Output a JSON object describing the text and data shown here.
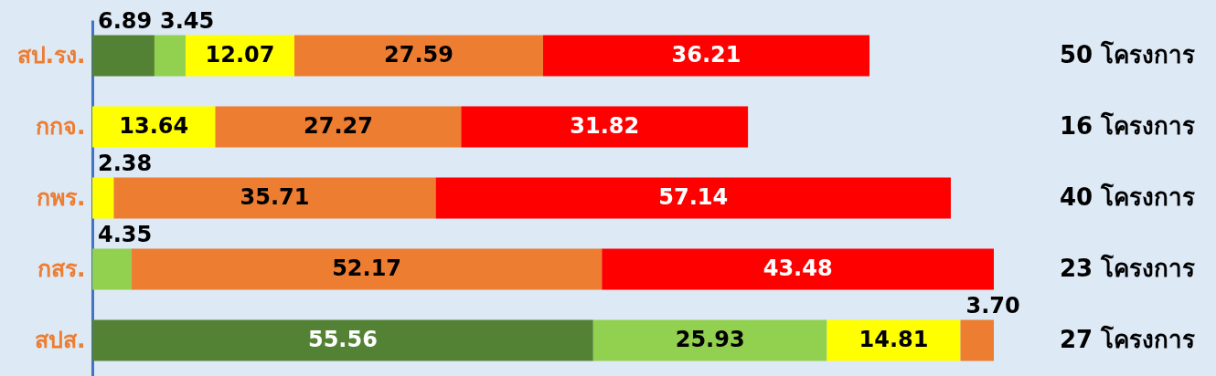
{
  "chart_data": {
    "type": "bar",
    "orientation": "horizontal",
    "stacked": true,
    "tick_labels": "y",
    "categories": [
      "สป.รง.",
      "กกจ.",
      "กพร.",
      "กสร.",
      "สปส."
    ],
    "xlim": [
      0,
      100
    ],
    "series": [
      {
        "color": "#548235",
        "values": [
          6.89,
          null,
          null,
          null,
          55.56
        ],
        "value_labels": [
          "6.89",
          null,
          null,
          null,
          "55.56"
        ]
      },
      {
        "color": "#92d050",
        "values": [
          3.45,
          null,
          null,
          4.35,
          25.93
        ],
        "value_labels": [
          "3.45",
          null,
          null,
          "4.35",
          "25.93"
        ]
      },
      {
        "color": "#ffff00",
        "values": [
          12.07,
          13.64,
          2.38,
          null,
          14.81
        ],
        "value_labels": [
          "12.07",
          "13.64",
          "2.38",
          null,
          "14.81"
        ]
      },
      {
        "color": "#ed7d31",
        "values": [
          27.59,
          27.27,
          35.71,
          52.17,
          3.7
        ],
        "value_labels": [
          "27.59",
          "27.27",
          "35.71",
          "52.17",
          "3.70"
        ]
      },
      {
        "color": "#ff0000",
        "values": [
          36.21,
          31.82,
          57.14,
          43.48,
          null
        ],
        "value_labels": [
          "36.21",
          "31.82",
          "57.14",
          "43.48",
          null
        ]
      }
    ],
    "annotations": [
      "50 โครงการ",
      "16 โครงการ",
      "40 โครงการ",
      "23 โครงการ",
      "27 โครงการ"
    ]
  }
}
